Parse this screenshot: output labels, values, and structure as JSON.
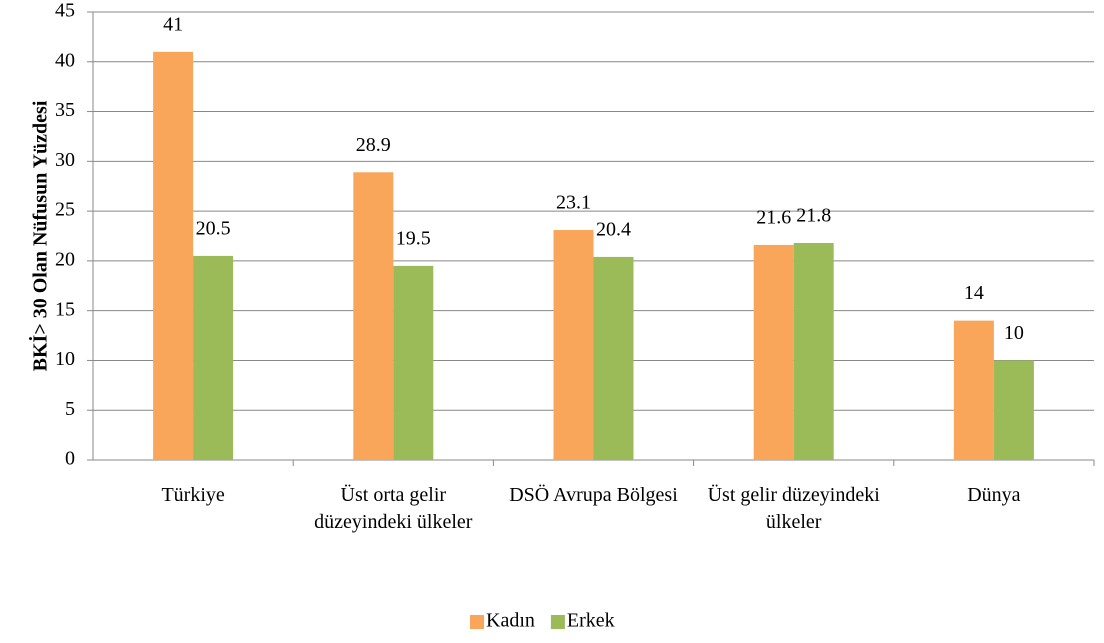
{
  "chart_data": {
    "type": "bar",
    "y_label": "BKİ> 30 Olan Nüfusun Yüzdesi",
    "categories": [
      "Türkiye",
      "Üst orta gelir düzeyindeki ülkeler",
      "DSÖ Avrupa Bölgesi",
      "Üst gelir düzeyindeki ülkeler",
      "Dünya"
    ],
    "series": [
      {
        "name": "Kadın",
        "color": "#f9a65a",
        "values": [
          41,
          28.9,
          23.1,
          21.6,
          14
        ]
      },
      {
        "name": "Erkek",
        "color": "#9bbb59",
        "values": [
          20.5,
          19.5,
          20.4,
          21.8,
          10
        ]
      }
    ],
    "ylim": [
      0,
      45
    ],
    "yticks": [
      0,
      5,
      10,
      15,
      20,
      25,
      30,
      35,
      40,
      45
    ],
    "grid": true,
    "legend": "bottom"
  }
}
